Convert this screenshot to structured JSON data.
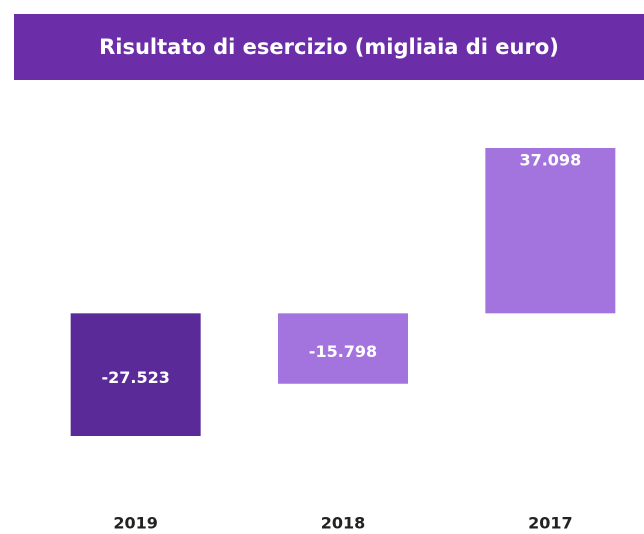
{
  "chart_data": {
    "type": "bar",
    "title": "Risultato di esercizio (migliaia di euro)",
    "categories": [
      "2019",
      "2018",
      "2017"
    ],
    "values": [
      -27523,
      -15798,
      37098
    ],
    "value_labels": [
      "-27.523",
      "-15.798",
      "37.098"
    ],
    "colors": [
      "#5a2a98",
      "#a373de",
      "#a373de"
    ],
    "title_background": "#6b2ea8"
  }
}
